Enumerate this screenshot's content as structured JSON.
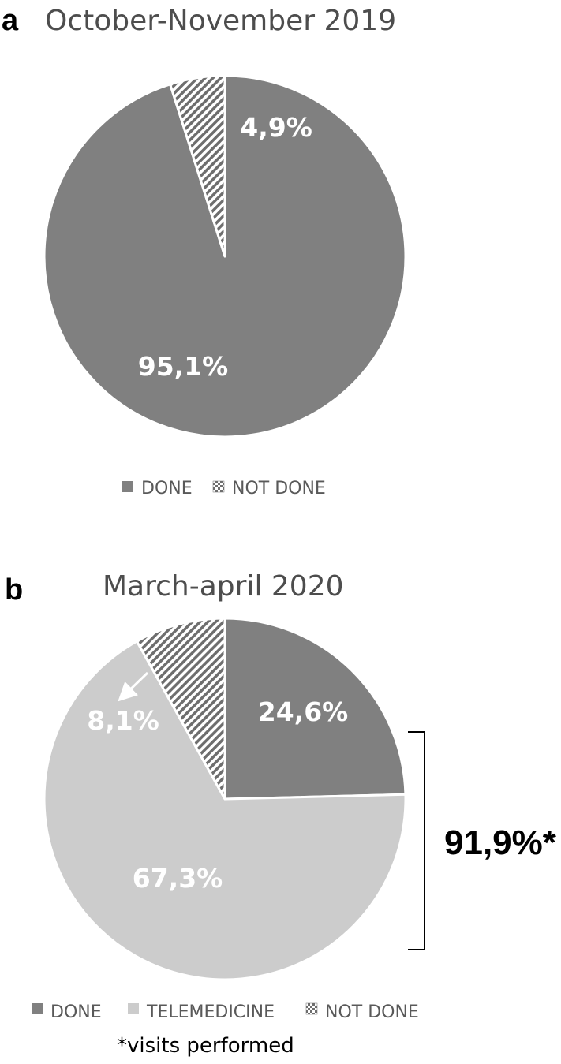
{
  "chart_data": [
    {
      "type": "pie",
      "panel": "a",
      "title": "October-November 2019",
      "start": "top",
      "direction": "clockwise",
      "slices": [
        {
          "label": "DONE",
          "value": 95.1,
          "value_label": "95,1%",
          "color": "#808080",
          "fill": "solid"
        },
        {
          "label": "NOT DONE",
          "value": 4.9,
          "value_label": "4,9%",
          "color": "#808080",
          "fill": "hatch"
        }
      ],
      "legend": {
        "placement": "bottom",
        "entries": [
          "DONE",
          "NOT DONE"
        ]
      }
    },
    {
      "type": "pie",
      "panel": "b",
      "title": "March-april 2020",
      "start": "top",
      "direction": "clockwise",
      "slices": [
        {
          "label": "DONE",
          "value": 24.6,
          "value_label": "24,6%",
          "color": "#808080",
          "fill": "solid"
        },
        {
          "label": "TELEMEDICINE",
          "value": 67.3,
          "value_label": "67,3%",
          "color": "#cccccc",
          "fill": "solid"
        },
        {
          "label": "NOT DONE",
          "value": 8.1,
          "value_label": "8,1%",
          "color": "#808080",
          "fill": "hatch"
        }
      ],
      "legend": {
        "placement": "bottom",
        "entries": [
          "DONE",
          "TELEMEDICINE",
          "NOT DONE"
        ]
      },
      "bracket_annotation": "91,9%*",
      "footnote": "*visits performed"
    }
  ]
}
